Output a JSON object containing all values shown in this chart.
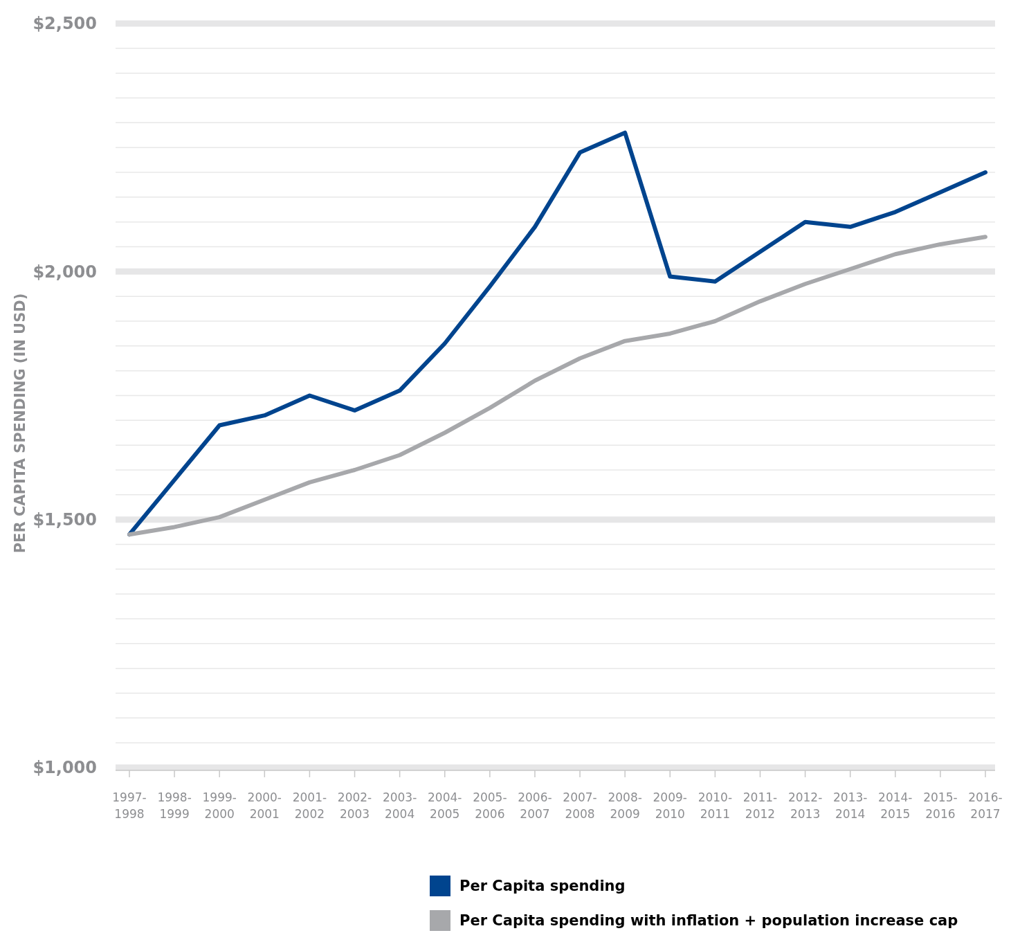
{
  "chart_data": {
    "type": "line",
    "ylabel": "PER CAPITA SPENDING (IN USD)",
    "categories": [
      "1997-1998",
      "1998-1999",
      "1999-2000",
      "2000-2001",
      "2001-2002",
      "2002-2003",
      "2003-2004",
      "2004-2005",
      "2005-2006",
      "2006-2007",
      "2007-2008",
      "2008-2009",
      "2009-2010",
      "2010-2011",
      "2011-2012",
      "2012-2013",
      "2013-2014",
      "2014-2015",
      "2015-2016",
      "2016-2017"
    ],
    "series": [
      {
        "name": "Per Capita spending",
        "color": "#00448e",
        "values": [
          1470,
          1580,
          1690,
          1710,
          1750,
          1720,
          1760,
          1855,
          1970,
          2090,
          2240,
          2280,
          1990,
          1980,
          2040,
          2100,
          2090,
          2120,
          2160,
          2200
        ]
      },
      {
        "name": "Per Capita spending with inflation + population increase cap",
        "color": "#a7a8ab",
        "values": [
          1470,
          1485,
          1505,
          1540,
          1575,
          1600,
          1630,
          1675,
          1725,
          1780,
          1825,
          1860,
          1875,
          1900,
          1940,
          1975,
          2005,
          2035,
          2055,
          2070
        ]
      }
    ],
    "ylim": [
      1000,
      2500
    ],
    "yticks": [
      {
        "value": 1000,
        "label": "$1,000"
      },
      {
        "value": 1050,
        "label": null
      },
      {
        "value": 1100,
        "label": null
      },
      {
        "value": 1150,
        "label": null
      },
      {
        "value": 1200,
        "label": null
      },
      {
        "value": 1250,
        "label": null
      },
      {
        "value": 1300,
        "label": null
      },
      {
        "value": 1350,
        "label": null
      },
      {
        "value": 1400,
        "label": null
      },
      {
        "value": 1450,
        "label": null
      },
      {
        "value": 1500,
        "label": "$1,500"
      },
      {
        "value": 1550,
        "label": null
      },
      {
        "value": 1600,
        "label": null
      },
      {
        "value": 1650,
        "label": null
      },
      {
        "value": 1700,
        "label": null
      },
      {
        "value": 1750,
        "label": null
      },
      {
        "value": 1800,
        "label": null
      },
      {
        "value": 1850,
        "label": null
      },
      {
        "value": 1900,
        "label": null
      },
      {
        "value": 1950,
        "label": null
      },
      {
        "value": 2000,
        "label": "$2,000"
      },
      {
        "value": 2050,
        "label": null
      },
      {
        "value": 2100,
        "label": null
      },
      {
        "value": 2150,
        "label": null
      },
      {
        "value": 2200,
        "label": null
      },
      {
        "value": 2250,
        "label": null
      },
      {
        "value": 2300,
        "label": null
      },
      {
        "value": 2350,
        "label": null
      },
      {
        "value": 2400,
        "label": null
      },
      {
        "value": 2450,
        "label": null
      },
      {
        "value": 2500,
        "label": "$2,500"
      }
    ],
    "grid": true,
    "legend": "bottom",
    "marker": "none",
    "line_style": "solid"
  }
}
